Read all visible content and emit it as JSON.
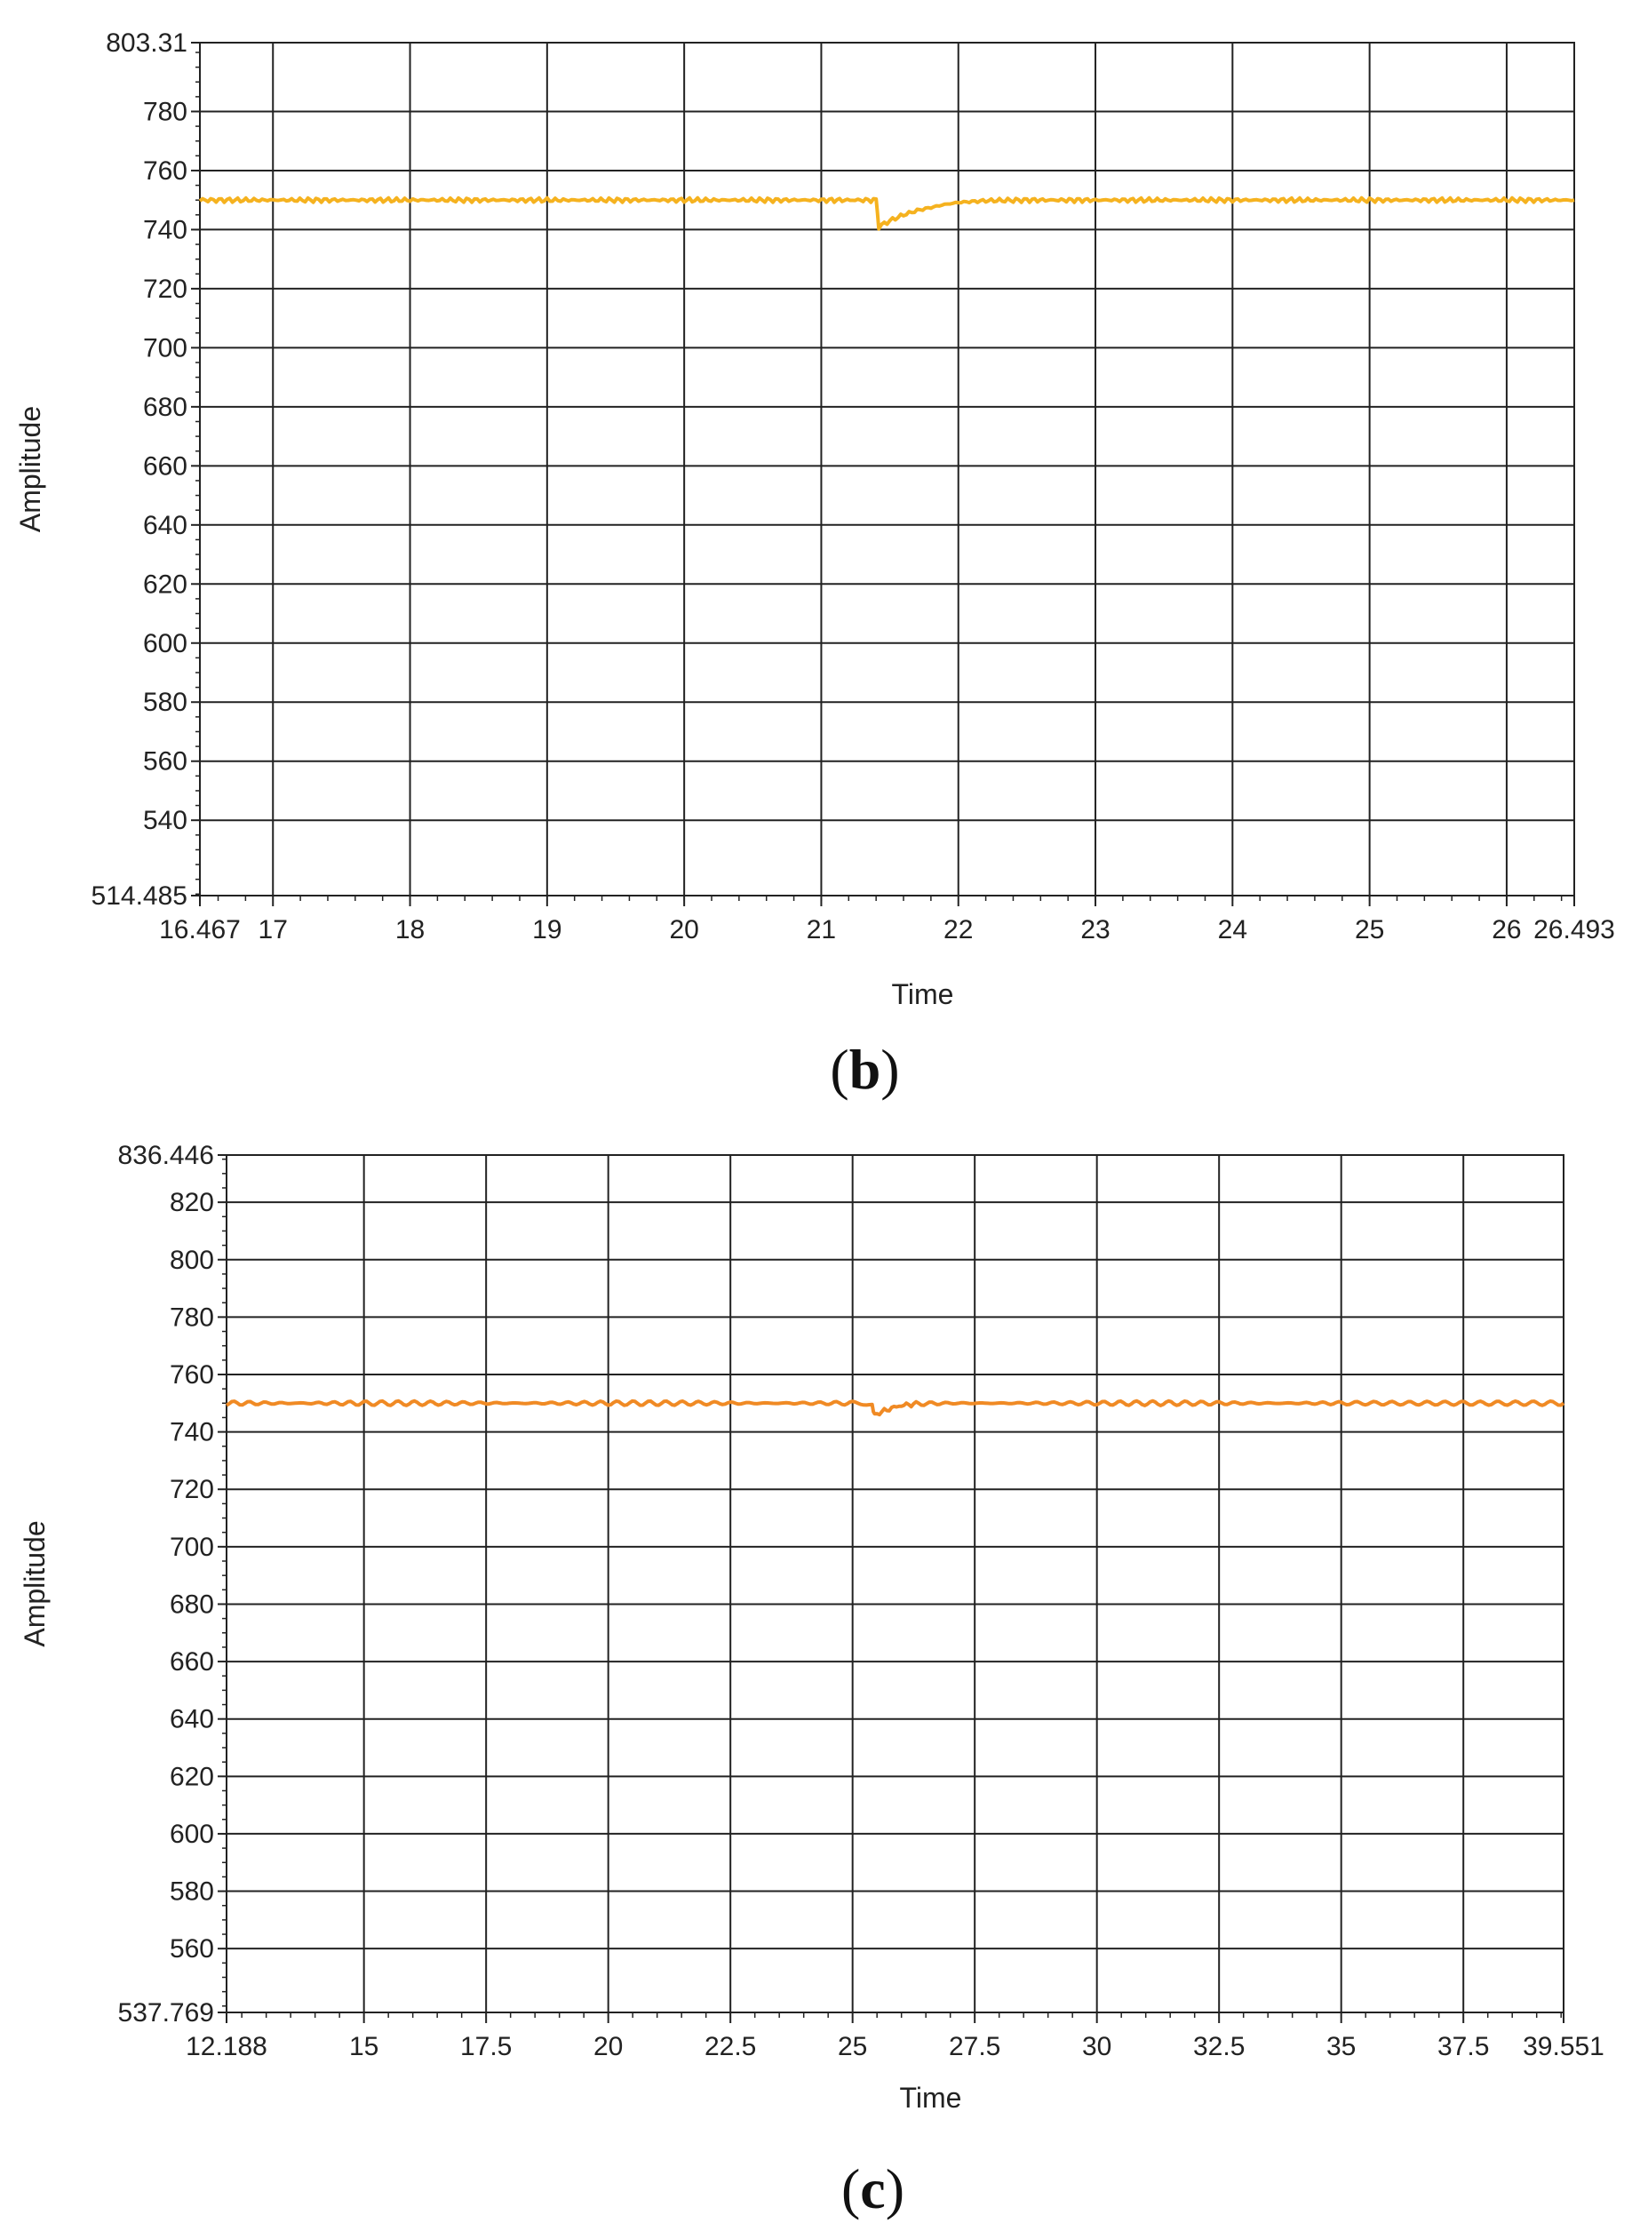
{
  "chart_data": [
    {
      "type": "line",
      "panel_label": "b",
      "xlabel": "Time",
      "ylabel": "Amplitude",
      "xlim": [
        16.467,
        26.493
      ],
      "ylim": [
        514.485,
        803.31
      ],
      "x_ticks": [
        16.467,
        17,
        18,
        19,
        20,
        21,
        22,
        23,
        24,
        25,
        26,
        26.493
      ],
      "x_tick_labels": [
        "16.467",
        "17",
        "18",
        "19",
        "20",
        "21",
        "22",
        "23",
        "24",
        "25",
        "26",
        "26.493"
      ],
      "y_ticks": [
        514.485,
        540,
        560,
        580,
        600,
        620,
        640,
        660,
        680,
        700,
        720,
        740,
        760,
        780,
        803.31
      ],
      "y_tick_labels": [
        "514.485",
        "540",
        "560",
        "580",
        "600",
        "620",
        "640",
        "660",
        "680",
        "700",
        "720",
        "740",
        "760",
        "780",
        "803.31"
      ],
      "grid": true,
      "color": "#F5B21F",
      "series": [
        {
          "x": [
            16.467,
            17,
            18,
            19,
            20,
            21,
            21.4,
            21.42,
            21.5,
            21.6,
            21.7,
            21.8,
            21.9,
            22.0,
            22.2,
            22.5,
            23,
            24,
            25,
            26,
            26.493
          ],
          "values": [
            750,
            750,
            750,
            750,
            750,
            750,
            750,
            741,
            743,
            745,
            746.5,
            747.5,
            748.5,
            749.2,
            749.8,
            750,
            750,
            750,
            750,
            750,
            750
          ]
        }
      ]
    },
    {
      "type": "line",
      "panel_label": "c",
      "xlabel": "Time",
      "ylabel": "Amplitude",
      "xlim": [
        12.188,
        39.551
      ],
      "ylim": [
        537.769,
        836.446
      ],
      "x_ticks": [
        12.188,
        15,
        17.5,
        20,
        22.5,
        25,
        27.5,
        30,
        32.5,
        35,
        37.5,
        39.551
      ],
      "x_tick_labels": [
        "12.188",
        "15",
        "17.5",
        "20",
        "22.5",
        "25",
        "27.5",
        "30",
        "32.5",
        "35",
        "37.5",
        "39.551"
      ],
      "y_ticks": [
        537.769,
        560,
        580,
        600,
        620,
        640,
        660,
        680,
        700,
        720,
        740,
        760,
        780,
        800,
        820,
        836.446
      ],
      "y_tick_labels": [
        "537.769",
        "560",
        "580",
        "600",
        "620",
        "640",
        "660",
        "680",
        "700",
        "720",
        "740",
        "760",
        "780",
        "800",
        "820",
        "836.446"
      ],
      "grid": true,
      "color": "#F08A24",
      "series": [
        {
          "x": [
            12.188,
            15,
            20,
            25,
            25.4,
            25.45,
            25.6,
            25.8,
            26.0,
            26.3,
            27,
            30,
            35,
            39.551
          ],
          "values": [
            750,
            750,
            750,
            750,
            749.5,
            746,
            747,
            748.3,
            749.2,
            749.8,
            750,
            750,
            750,
            750
          ]
        }
      ]
    }
  ]
}
